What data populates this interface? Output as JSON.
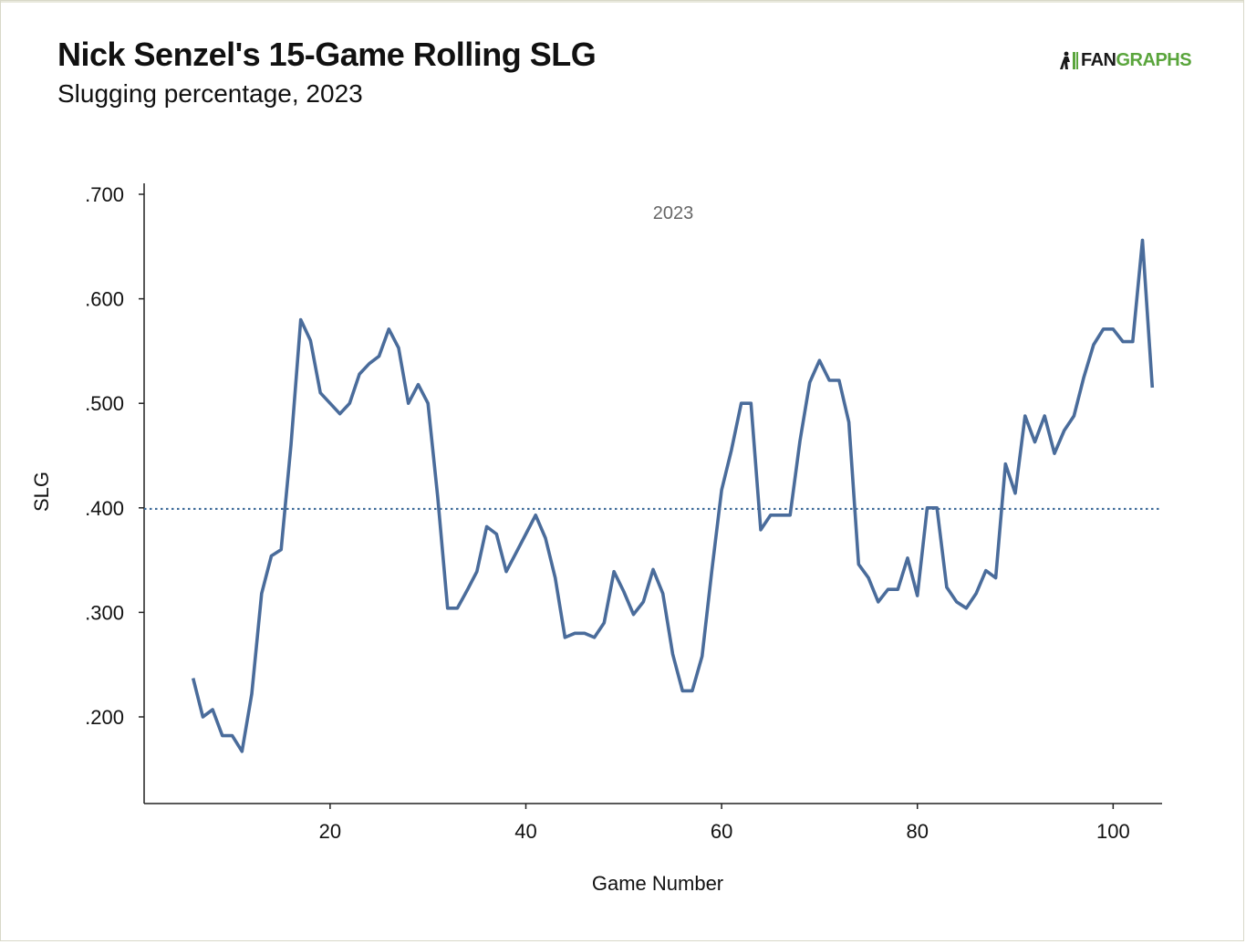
{
  "header": {
    "title": "Nick Senzel's 15-Game Rolling SLG",
    "subtitle": "Slugging percentage, 2023"
  },
  "logo": {
    "fan": "FAN",
    "graphs": "GRAPHS",
    "icon": "fangraphs-player-icon",
    "colors": {
      "fan": "#1a1a1a",
      "graphs": "#5aa53c"
    }
  },
  "chart_data": {
    "type": "line",
    "title": "Nick Senzel's 15-Game Rolling SLG",
    "subtitle": "Slugging percentage, 2023",
    "xlabel": "Game Number",
    "ylabel": "SLG",
    "annotation": "2023",
    "xlim": [
      1,
      105
    ],
    "ylim": [
      0.14,
      0.7
    ],
    "x_ticks": [
      20,
      40,
      60,
      80,
      100
    ],
    "x_tick_labels": [
      "20",
      "40",
      "60",
      "80",
      "100"
    ],
    "y_ticks": [
      0.2,
      0.3,
      0.4,
      0.5,
      0.6,
      0.7
    ],
    "y_tick_labels": [
      ".200",
      ".300",
      ".400",
      ".500",
      ".600",
      ".700"
    ],
    "reference_line": {
      "y": 0.399,
      "style": "dotted",
      "color": "#3d6a98"
    },
    "grid": false,
    "series": [
      {
        "color": "#4a6c9b",
        "x": [
          6,
          7,
          8,
          9,
          10,
          11,
          12,
          13,
          14,
          15,
          16,
          17,
          18,
          19,
          20,
          21,
          22,
          23,
          24,
          25,
          26,
          27,
          28,
          29,
          30,
          31,
          32,
          33,
          34,
          35,
          36,
          37,
          38,
          39,
          40,
          41,
          42,
          43,
          44,
          45,
          46,
          47,
          48,
          49,
          50,
          51,
          52,
          53,
          54,
          55,
          56,
          57,
          58,
          59,
          60,
          61,
          62,
          63,
          64,
          65,
          66,
          67,
          68,
          69,
          70,
          71,
          72,
          73,
          74,
          75,
          76,
          77,
          78,
          79,
          80,
          81,
          82,
          83,
          84,
          85,
          86,
          87,
          88,
          89,
          90,
          91,
          92,
          93,
          94,
          95,
          96,
          97,
          98,
          99,
          100,
          101,
          102,
          103,
          104
        ],
        "values": [
          0.237,
          0.2,
          0.207,
          0.182,
          0.182,
          0.167,
          0.222,
          0.318,
          0.354,
          0.36,
          0.46,
          0.58,
          0.56,
          0.51,
          0.5,
          0.49,
          0.5,
          0.528,
          0.538,
          0.545,
          0.571,
          0.553,
          0.5,
          0.518,
          0.5,
          0.41,
          0.304,
          0.304,
          0.321,
          0.339,
          0.382,
          0.375,
          0.339,
          0.357,
          0.375,
          0.393,
          0.371,
          0.333,
          0.276,
          0.28,
          0.28,
          0.276,
          0.29,
          0.339,
          0.32,
          0.298,
          0.31,
          0.341,
          0.318,
          0.26,
          0.225,
          0.225,
          0.258,
          0.34,
          0.417,
          0.455,
          0.5,
          0.5,
          0.379,
          0.393,
          0.393,
          0.393,
          0.464,
          0.52,
          0.541,
          0.522,
          0.522,
          0.482,
          0.346,
          0.333,
          0.31,
          0.322,
          0.322,
          0.352,
          0.316,
          0.4,
          0.4,
          0.324,
          0.31,
          0.304,
          0.318,
          0.34,
          0.333,
          0.442,
          0.414,
          0.488,
          0.463,
          0.488,
          0.452,
          0.474,
          0.488,
          0.525,
          0.556,
          0.571,
          0.571,
          0.559,
          0.559,
          0.656,
          0.515
        ]
      }
    ]
  }
}
